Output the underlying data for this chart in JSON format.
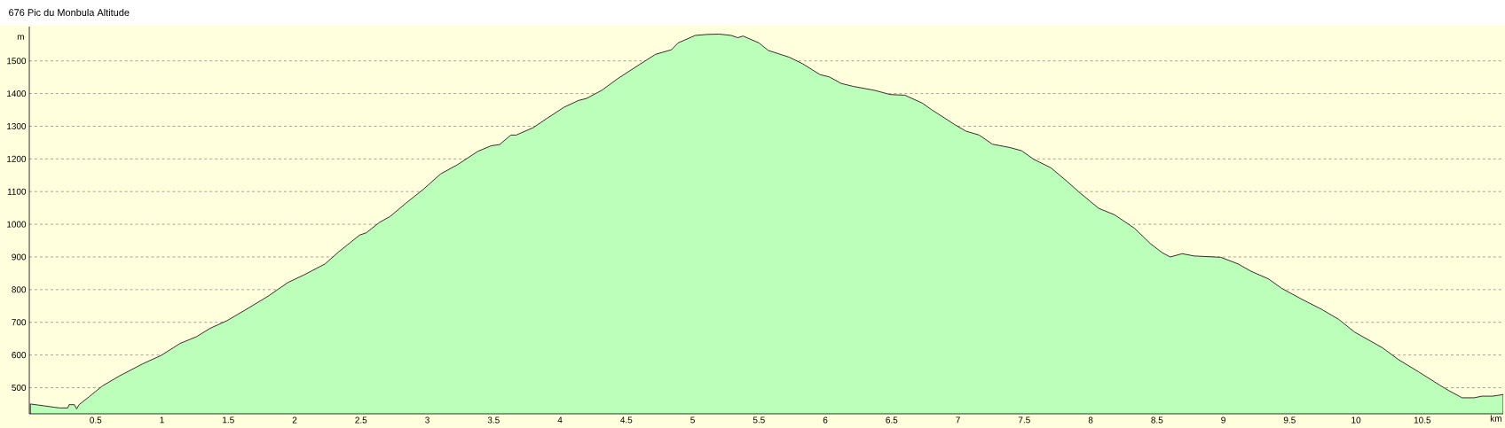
{
  "chart_data": {
    "type": "area",
    "title": "676 Pic du Monbula Altitude",
    "xlabel": "km",
    "ylabel": "m",
    "color": "#bbffbb",
    "x": [
      0.008,
      0.064,
      0.19,
      0.23,
      0.29,
      0.3,
      0.34,
      0.357,
      0.375,
      0.45,
      0.55,
      0.68,
      0.855,
      0.995,
      1.135,
      1.26,
      1.365,
      1.49,
      1.645,
      1.8,
      1.95,
      2.08,
      2.23,
      2.33,
      2.49,
      2.54,
      2.64,
      2.72,
      2.84,
      2.97,
      3.1,
      3.23,
      3.38,
      3.48,
      3.545,
      3.63,
      3.67,
      3.8,
      3.905,
      4.03,
      4.14,
      4.2,
      4.315,
      4.44,
      4.6,
      4.72,
      4.84,
      4.89,
      5.02,
      5.11,
      5.2,
      5.29,
      5.34,
      5.38,
      5.5,
      5.57,
      5.73,
      5.83,
      5.96,
      6.03,
      6.12,
      6.21,
      6.37,
      6.49,
      6.6,
      6.73,
      6.8,
      6.98,
      7.06,
      7.16,
      7.26,
      7.39,
      7.48,
      7.57,
      7.7,
      7.82,
      7.92,
      8.06,
      8.18,
      8.33,
      8.45,
      8.54,
      8.6,
      8.69,
      8.78,
      8.98,
      9.11,
      9.21,
      9.34,
      9.44,
      9.59,
      9.74,
      9.87,
      9.99,
      10.2,
      10.32,
      10.47,
      10.63,
      10.7,
      10.8,
      10.89,
      10.95,
      11.03,
      11.11
    ],
    "values": [
      450,
      447,
      440,
      438,
      438,
      448,
      448,
      435,
      448,
      472,
      505,
      536,
      573,
      599,
      635,
      656,
      682,
      705,
      742,
      780,
      822,
      847,
      879,
      915,
      967,
      974,
      1006,
      1024,
      1065,
      1107,
      1154,
      1183,
      1223,
      1240,
      1244,
      1273,
      1273,
      1296,
      1325,
      1358,
      1379,
      1385,
      1410,
      1447,
      1489,
      1520,
      1534,
      1555,
      1578,
      1581,
      1582,
      1578,
      1571,
      1576,
      1555,
      1532,
      1511,
      1491,
      1458,
      1451,
      1431,
      1422,
      1410,
      1397,
      1395,
      1371,
      1351,
      1304,
      1285,
      1273,
      1245,
      1235,
      1225,
      1199,
      1173,
      1132,
      1096,
      1049,
      1029,
      988,
      941,
      913,
      900,
      910,
      903,
      899,
      879,
      856,
      833,
      804,
      771,
      740,
      709,
      670,
      622,
      586,
      549,
      508,
      491,
      469,
      469,
      474,
      474,
      479
    ],
    "xlim": [
      0,
      11.11
    ],
    "ylim": [
      420,
      1605
    ],
    "xticks": [
      0.5,
      1,
      1.5,
      2,
      2.5,
      3,
      3.5,
      4,
      4.5,
      5,
      5.5,
      6,
      6.5,
      7,
      7.5,
      8,
      8.5,
      9,
      9.5,
      10,
      10.5
    ],
    "yticks": [
      500,
      600,
      700,
      800,
      900,
      1000,
      1100,
      1200,
      1300,
      1400,
      1500
    ],
    "grid": "y"
  }
}
